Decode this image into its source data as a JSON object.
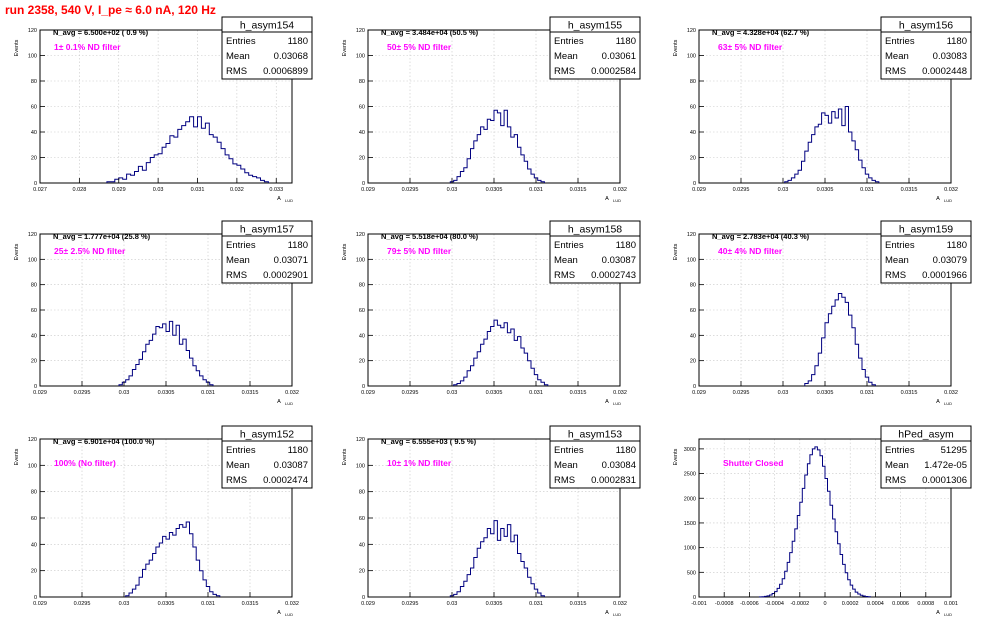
{
  "run_title": "run 2358,   540 V, I_pe ≈ 6.0 nA, 120 Hz",
  "colors": {
    "hist": "#000080",
    "annotation": "#ff00ff",
    "title": "#ff0000",
    "grid": "#c8c8c8"
  },
  "stat_labels": {
    "entries": "Entries",
    "mean": "Mean",
    "rms": "RMS"
  },
  "axes": {
    "ylabel": "Events",
    "xlabel": "A",
    "xlabel_sub": "LUD"
  },
  "chart_data": [
    {
      "type": "bar",
      "name": "h_asym154",
      "navg": "N_avg = 6.500e+02 ( 0.9 %)",
      "annotation": "1± 0.1% ND filter",
      "entries": "1180",
      "mean": "0.03068",
      "rms": "0.0006899",
      "xlim": [
        0.027,
        0.0334
      ],
      "ylim": [
        0,
        120
      ],
      "xticks": [
        "0.027",
        "0.028",
        "0.029",
        "0.03",
        "0.031",
        "0.032",
        "0.033"
      ],
      "yticks": [
        "0",
        "20",
        "40",
        "60",
        "80",
        "100",
        "120"
      ],
      "xtick_values": [
        0.027,
        0.028,
        0.029,
        0.03,
        0.031,
        0.032,
        0.033
      ],
      "bin_start": 0.0287,
      "bin_width": 0.0001,
      "values": [
        1,
        1,
        3,
        4,
        3,
        7,
        6,
        9,
        13,
        10,
        16,
        20,
        22,
        23,
        28,
        31,
        37,
        36,
        42,
        45,
        48,
        52,
        44,
        52,
        43,
        47,
        38,
        36,
        32,
        27,
        22,
        19,
        15,
        14,
        11,
        8,
        6,
        5,
        4,
        2,
        1
      ]
    },
    {
      "type": "bar",
      "name": "h_asym155",
      "navg": "N_avg = 3.484e+04 (50.5 %)",
      "annotation": "50± 5% ND filter",
      "entries": "1180",
      "mean": "0.03061",
      "rms": "0.0002584",
      "xlim": [
        0.029,
        0.032
      ],
      "ylim": [
        0,
        120
      ],
      "xticks": [
        "0.029",
        "0.0295",
        "0.03",
        "0.0305",
        "0.031",
        "0.0315",
        "0.032"
      ],
      "yticks": [
        "0",
        "20",
        "40",
        "60",
        "80",
        "100",
        "120"
      ],
      "xtick_values": [
        0.029,
        0.0295,
        0.03,
        0.0305,
        0.031,
        0.0315,
        0.032
      ],
      "bin_start": 0.02998,
      "bin_width": 4e-05,
      "values": [
        1,
        2,
        5,
        9,
        12,
        19,
        27,
        33,
        38,
        44,
        42,
        50,
        49,
        57,
        55,
        45,
        57,
        44,
        36,
        38,
        28,
        22,
        17,
        11,
        7,
        4,
        2,
        1
      ]
    },
    {
      "type": "bar",
      "name": "h_asym156",
      "navg": "N_avg = 4.328e+04 (62.7 %)",
      "annotation": "63± 5% ND filter",
      "entries": "1180",
      "mean": "0.03083",
      "rms": "0.0002448",
      "xlim": [
        0.029,
        0.032
      ],
      "ylim": [
        0,
        120
      ],
      "xticks": [
        "0.029",
        "0.0295",
        "0.03",
        "0.0305",
        "0.031",
        "0.0315",
        "0.032"
      ],
      "yticks": [
        "0",
        "20",
        "40",
        "60",
        "80",
        "100",
        "120"
      ],
      "xtick_values": [
        0.029,
        0.0295,
        0.03,
        0.0305,
        0.031,
        0.0315,
        0.032
      ],
      "bin_start": 0.03002,
      "bin_width": 4e-05,
      "values": [
        1,
        2,
        4,
        7,
        10,
        17,
        25,
        32,
        38,
        44,
        46,
        55,
        53,
        47,
        56,
        51,
        58,
        45,
        60,
        40,
        33,
        26,
        18,
        12,
        7,
        4,
        2,
        1
      ]
    },
    {
      "type": "bar",
      "name": "h_asym157",
      "navg": "N_avg = 1.777e+04 (25.8 %)",
      "annotation": "25± 2.5% ND filter",
      "entries": "1180",
      "mean": "0.03071",
      "rms": "0.0002901",
      "xlim": [
        0.029,
        0.032
      ],
      "ylim": [
        0,
        120
      ],
      "xticks": [
        "0.029",
        "0.0295",
        "0.03",
        "0.0305",
        "0.031",
        "0.0315",
        "0.032"
      ],
      "yticks": [
        "0",
        "20",
        "40",
        "60",
        "80",
        "100",
        "120"
      ],
      "xtick_values": [
        0.029,
        0.0295,
        0.03,
        0.0305,
        0.031,
        0.0315,
        0.032
      ],
      "bin_start": 0.02994,
      "bin_width": 4e-05,
      "values": [
        1,
        3,
        5,
        8,
        13,
        17,
        21,
        27,
        33,
        36,
        41,
        47,
        46,
        49,
        43,
        51,
        40,
        48,
        33,
        37,
        28,
        22,
        16,
        12,
        8,
        5,
        3,
        1
      ]
    },
    {
      "type": "bar",
      "name": "h_asym158",
      "navg": "N_avg = 5.518e+04 (80.0 %)",
      "annotation": "79± 5% ND filter",
      "entries": "1180",
      "mean": "0.03087",
      "rms": "0.0002743",
      "xlim": [
        0.029,
        0.032
      ],
      "ylim": [
        0,
        120
      ],
      "xticks": [
        "0.029",
        "0.0295",
        "0.03",
        "0.0305",
        "0.031",
        "0.0315",
        "0.032"
      ],
      "yticks": [
        "0",
        "20",
        "40",
        "60",
        "80",
        "100",
        "120"
      ],
      "xtick_values": [
        0.029,
        0.0295,
        0.03,
        0.0305,
        0.031,
        0.0315,
        0.032
      ],
      "bin_start": 0.03002,
      "bin_width": 4e-05,
      "values": [
        1,
        2,
        4,
        7,
        12,
        16,
        22,
        27,
        33,
        37,
        43,
        47,
        52,
        48,
        46,
        50,
        42,
        45,
        36,
        39,
        30,
        26,
        20,
        14,
        9,
        5,
        3,
        1
      ]
    },
    {
      "type": "bar",
      "name": "h_asym159",
      "navg": "N_avg = 2.783e+04 (40.3 %)",
      "annotation": "40± 4% ND filter",
      "entries": "1180",
      "mean": "0.03079",
      "rms": "0.0001966",
      "xlim": [
        0.029,
        0.032
      ],
      "ylim": [
        0,
        120
      ],
      "xticks": [
        "0.029",
        "0.0295",
        "0.03",
        "0.0305",
        "0.031",
        "0.0315",
        "0.032"
      ],
      "yticks": [
        "0",
        "20",
        "40",
        "60",
        "80",
        "100",
        "120"
      ],
      "xtick_values": [
        0.029,
        0.0295,
        0.03,
        0.0305,
        0.031,
        0.0315,
        0.032
      ],
      "bin_start": 0.03026,
      "bin_width": 4e-05,
      "values": [
        2,
        4,
        9,
        16,
        26,
        38,
        50,
        57,
        63,
        68,
        73,
        70,
        66,
        56,
        46,
        33,
        22,
        13,
        7,
        3,
        1
      ]
    },
    {
      "type": "bar",
      "name": "h_asym152",
      "navg": "N_avg = 6.901e+04 (100.0 %)",
      "annotation": "100% (No filter)",
      "entries": "1180",
      "mean": "0.03087",
      "rms": "0.0002474",
      "xlim": [
        0.029,
        0.032
      ],
      "ylim": [
        0,
        120
      ],
      "xticks": [
        "0.029",
        "0.0295",
        "0.03",
        "0.0305",
        "0.031",
        "0.0315",
        "0.032"
      ],
      "yticks": [
        "0",
        "20",
        "40",
        "60",
        "80",
        "100",
        "120"
      ],
      "xtick_values": [
        0.029,
        0.0295,
        0.03,
        0.0305,
        0.031,
        0.0315,
        0.032
      ],
      "bin_start": 0.03002,
      "bin_width": 4e-05,
      "values": [
        1,
        3,
        6,
        9,
        15,
        21,
        25,
        28,
        33,
        38,
        41,
        46,
        44,
        49,
        47,
        52,
        55,
        53,
        57,
        48,
        38,
        28,
        20,
        13,
        8,
        4,
        2,
        1
      ]
    },
    {
      "type": "bar",
      "name": "h_asym153",
      "navg": "N_avg = 6.555e+03 ( 9.5 %)",
      "annotation": "10± 1% ND filter",
      "entries": "1180",
      "mean": "0.03084",
      "rms": "0.0002831",
      "xlim": [
        0.029,
        0.032
      ],
      "ylim": [
        0,
        120
      ],
      "xticks": [
        "0.029",
        "0.0295",
        "0.03",
        "0.0305",
        "0.031",
        "0.0315",
        "0.032"
      ],
      "yticks": [
        "0",
        "20",
        "40",
        "60",
        "80",
        "100",
        "120"
      ],
      "xtick_values": [
        0.029,
        0.0295,
        0.03,
        0.0305,
        0.031,
        0.0315,
        0.032
      ],
      "bin_start": 0.02998,
      "bin_width": 4e-05,
      "values": [
        1,
        2,
        4,
        8,
        12,
        17,
        22,
        30,
        37,
        42,
        45,
        52,
        48,
        58,
        43,
        52,
        46,
        55,
        42,
        47,
        33,
        27,
        22,
        15,
        10,
        6,
        3,
        1
      ]
    },
    {
      "type": "bar",
      "name": "hPed_asym",
      "navg": "",
      "annotation": "Shutter Closed",
      "entries": "51295",
      "mean": "1.472e-05",
      "rms": "0.0001306",
      "xlim": [
        -0.001,
        0.001
      ],
      "ylim": [
        0,
        3200
      ],
      "xticks": [
        "-0.001",
        "-0.0008",
        "-0.0006",
        "-0.0004",
        "-0.0002",
        "0",
        "0.0002",
        "0.0004",
        "0.0006",
        "0.0008",
        "0.001"
      ],
      "yticks": [
        "0",
        "500",
        "1000",
        "1500",
        "2000",
        "2500",
        "3000"
      ],
      "xtick_values": [
        -0.001,
        -0.0008,
        -0.0006,
        -0.0004,
        -0.0002,
        0,
        0.0002,
        0.0004,
        0.0006,
        0.0008,
        0.001
      ],
      "bin_start": -0.00052,
      "bin_width": 2e-05,
      "values": [
        3,
        6,
        12,
        22,
        40,
        70,
        110,
        175,
        260,
        370,
        520,
        700,
        900,
        1130,
        1380,
        1650,
        1920,
        2200,
        2470,
        2700,
        2880,
        3000,
        3040,
        2980,
        2860,
        2650,
        2400,
        2140,
        1860,
        1580,
        1320,
        1080,
        860,
        660,
        490,
        350,
        240,
        160,
        100,
        60,
        35,
        20,
        10,
        5
      ]
    }
  ]
}
